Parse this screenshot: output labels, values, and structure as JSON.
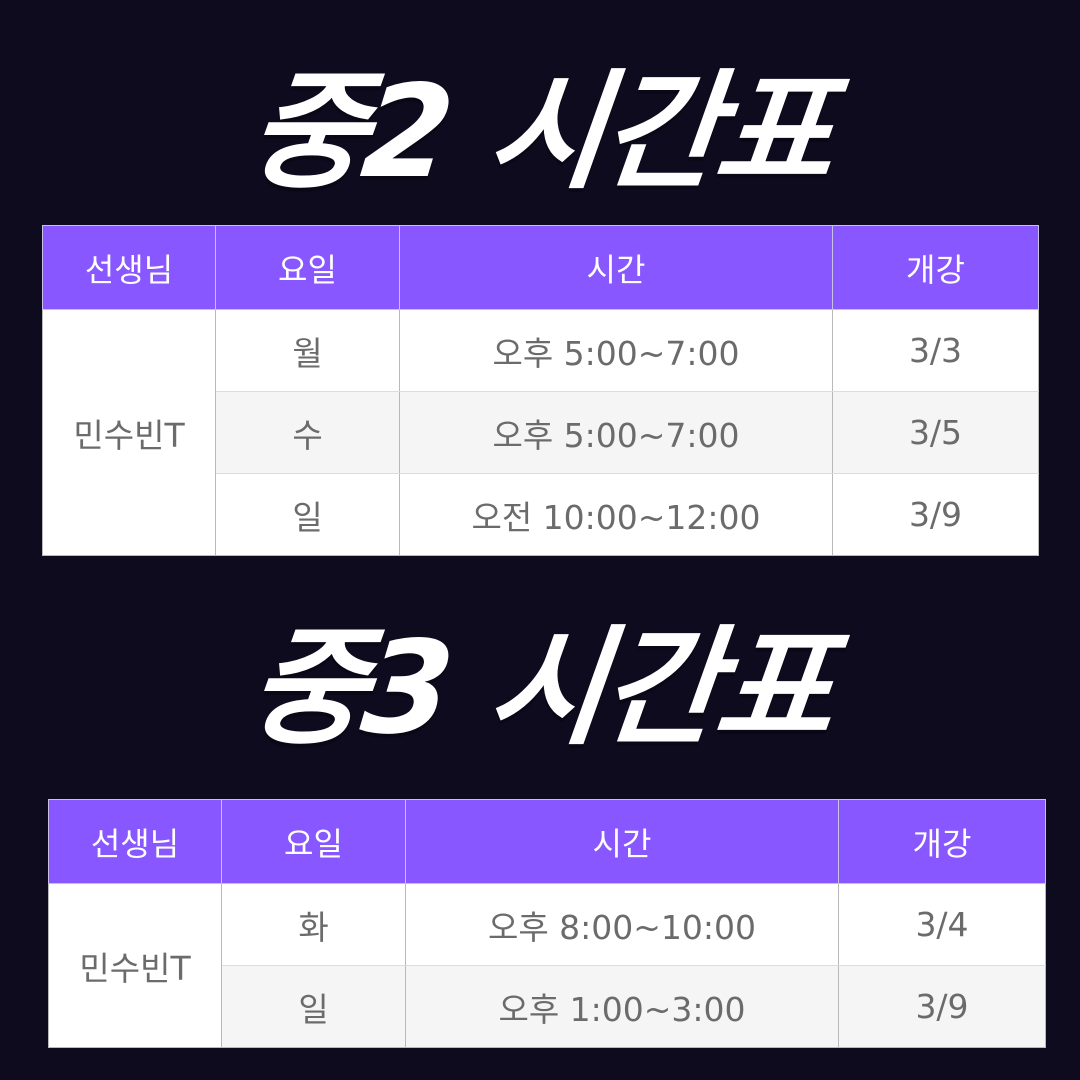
{
  "sections": [
    {
      "title": "중2 시간표",
      "headers": [
        "선생님",
        "요일",
        "시간",
        "개강"
      ],
      "teacher": "민수빈T",
      "rows": [
        {
          "day": "월",
          "time": "오후 5:00~7:00",
          "start": "3/3"
        },
        {
          "day": "수",
          "time": "오후 5:00~7:00",
          "start": "3/5"
        },
        {
          "day": "일",
          "time": "오전 10:00~12:00",
          "start": "3/9"
        }
      ]
    },
    {
      "title": "중3 시간표",
      "headers": [
        "선생님",
        "요일",
        "시간",
        "개강"
      ],
      "teacher": "민수빈T",
      "rows": [
        {
          "day": "화",
          "time": "오후 8:00~10:00",
          "start": "3/4"
        },
        {
          "day": "일",
          "time": "오후 1:00~3:00",
          "start": "3/9"
        }
      ]
    }
  ],
  "colors": {
    "background": "#0e0b1e",
    "header": "#8957ff",
    "cell_text": "#6b6b6b"
  }
}
